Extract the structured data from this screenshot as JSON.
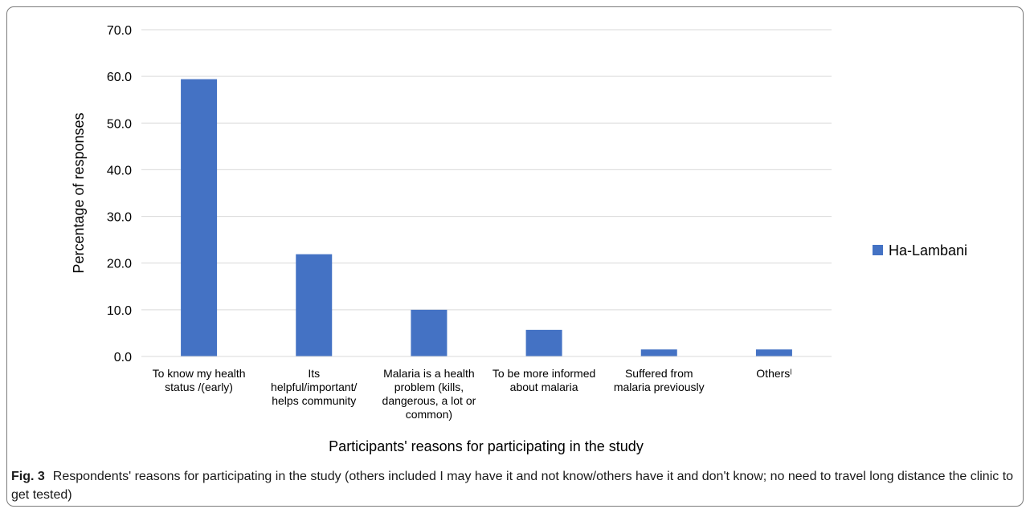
{
  "chart_data": {
    "type": "bar",
    "title": "",
    "xlabel": "Participants' reasons for participating in the study",
    "ylabel": "Percentage of responses",
    "ylim": [
      0,
      70
    ],
    "yticks": [
      "0.0",
      "10.0",
      "20.0",
      "30.0",
      "40.0",
      "50.0",
      "60.0",
      "70.0"
    ],
    "grid": true,
    "legend_position": "right",
    "bar_color": "#4472c4",
    "categories": [
      [
        "To know my health",
        "status /(early)"
      ],
      [
        "Its",
        "helpful/important/",
        "helps community"
      ],
      [
        "Malaria is a health",
        "problem (kills,",
        "dangerous, a lot or",
        "common)"
      ],
      [
        "To be more informed",
        "about malaria"
      ],
      [
        "Suffered from",
        "malaria previously"
      ],
      [
        "Othersˡ"
      ]
    ],
    "series": [
      {
        "name": "Ha-Lambani",
        "values": [
          59.4,
          21.9,
          10.0,
          5.7,
          1.5,
          1.5
        ]
      }
    ]
  },
  "caption": {
    "label": "Fig. 3",
    "text": "Respondents' reasons for participating in the study (others included I may have it and not know/others have it and don't know; no need to travel long distance the clinic to get tested)"
  }
}
